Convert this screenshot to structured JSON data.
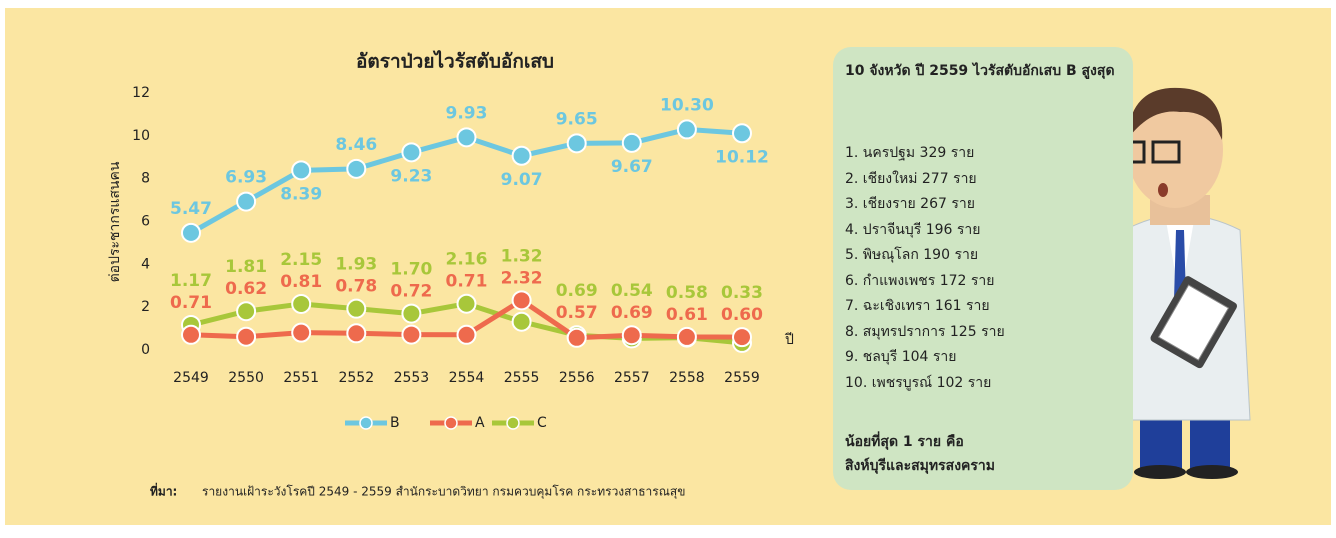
{
  "chart_data": {
    "type": "line",
    "title": "อัตราป่วยไวรัสตับอักเสบ",
    "y_label": "ต่อประชากรแสนคน",
    "x_label": "ปี",
    "categories": [
      "2549",
      "2550",
      "2551",
      "2552",
      "2553",
      "2554",
      "2555",
      "2556",
      "2557",
      "2558",
      "2559"
    ],
    "series": [
      {
        "name": "B",
        "color": "#6cc7e0",
        "values": [
          5.47,
          6.93,
          8.39,
          8.46,
          9.23,
          9.93,
          9.07,
          9.65,
          9.67,
          10.3,
          10.12
        ],
        "value_labels": [
          "5.47",
          "6.93",
          "8.39",
          "8.46",
          "9.23",
          "9.93",
          "9.07",
          "9.65",
          "9.67",
          "10.30",
          "10.12"
        ]
      },
      {
        "name": "A",
        "color": "#ee6a4d",
        "values": [
          0.71,
          0.62,
          0.81,
          0.78,
          0.72,
          0.71,
          2.32,
          0.57,
          0.69,
          0.61,
          0.6
        ],
        "value_labels": [
          "0.71",
          "0.62",
          "0.81",
          "0.78",
          "0.72",
          "0.71",
          "2.32",
          "0.57",
          "0.69",
          "0.61",
          "0.60"
        ]
      },
      {
        "name": "C",
        "color": "#a8c73a",
        "values": [
          1.17,
          1.81,
          2.15,
          1.93,
          1.7,
          2.16,
          1.32,
          0.69,
          0.54,
          0.58,
          0.33
        ],
        "value_labels": [
          "1.17",
          "1.81",
          "2.15",
          "1.93",
          "1.70",
          "2.16",
          "1.32",
          "0.69",
          "0.54",
          "0.58",
          "0.33"
        ]
      }
    ],
    "ylim": [
      0,
      12
    ],
    "yticks": [
      0,
      2,
      4,
      6,
      8,
      10,
      12
    ],
    "grid": false
  },
  "source_label": "ที่มา:",
  "source": "รายงานเฝ้าระวังโรคปี 2549 - 2559 สำนักระบาดวิทยา กรมควบคุมโรค กระทรวงสาธารณสุข",
  "panel": {
    "title": "10 จังหวัด ปี 2559 ไวรัสตับอักเสบ B สูงสุด",
    "items": [
      "1. นครปฐม 329 ราย",
      "2. เชียงใหม่ 277 ราย",
      "3. เชียงราย 267 ราย",
      "4. ปราจีนบุรี 196 ราย",
      "5. พิษณุโลก 190 ราย",
      "6. กำแพงเพชร 172 ราย",
      "7. ฉะเชิงเทรา 161 ราย",
      "8. สมุทรปราการ 125 ราย",
      "9. ชลบุรี 104 ราย",
      "10. เพชรบูรณ์ 102 ราย"
    ],
    "footer": [
      "น้อยที่สุด 1 ราย คือ",
      "สิงห์บุรีและสมุทรสงคราม"
    ]
  }
}
